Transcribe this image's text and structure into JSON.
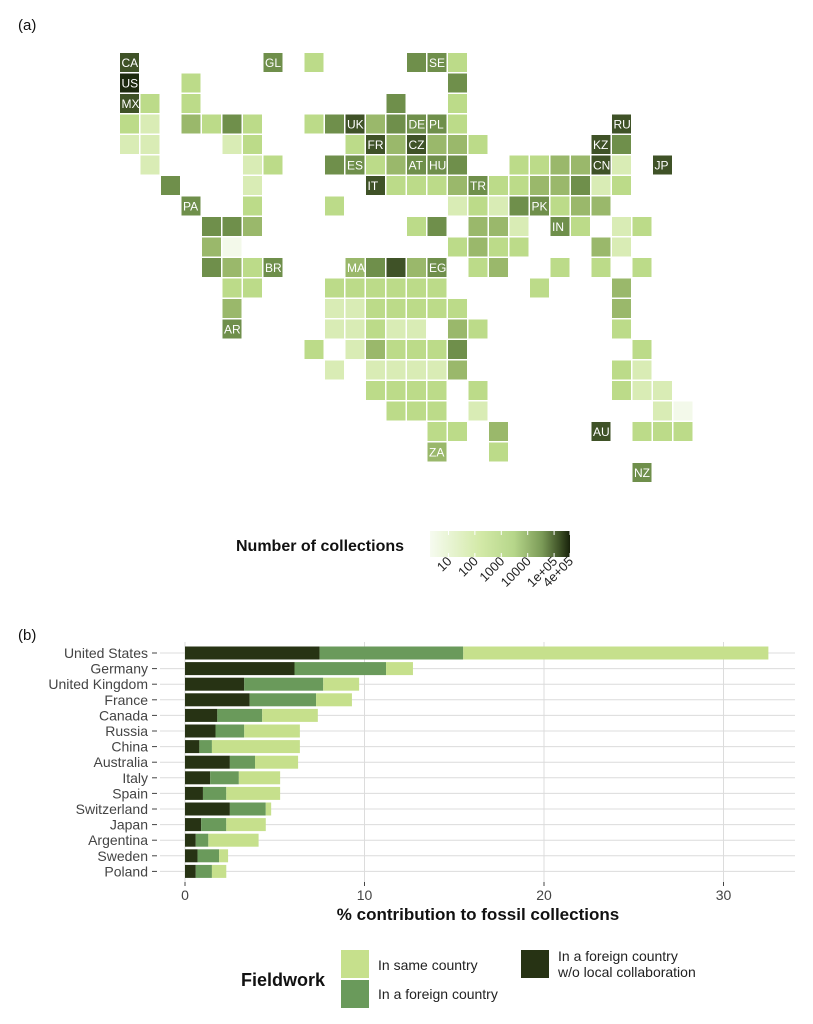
{
  "panel_a_label": "(a)",
  "panel_b_label": "(b)",
  "colors": {
    "same_country": "#c6e08c",
    "foreign_country": "#6a9a5b",
    "foreign_no_collab": "#273314",
    "grid": "#dcdcdc",
    "map_scale": [
      "#f3f9ea",
      "#d9ecb5",
      "#bcdb89",
      "#9ab86b",
      "#6f8f4b",
      "#3f5227",
      "#1d2a0f"
    ]
  },
  "map": {
    "legend_title": "Number of collections",
    "legend_ticks": [
      "10",
      "100",
      "1000",
      "10000",
      "1e+05",
      "4e+05"
    ],
    "tile_labels": [
      "CA",
      "US",
      "MX",
      "GL",
      "SE",
      "UK",
      "DE",
      "PL",
      "RU",
      "FR",
      "CZ",
      "KZ",
      "ES",
      "AT",
      "HU",
      "CN",
      "JP",
      "IT",
      "TR",
      "PA",
      "PK",
      "IN",
      "BR",
      "MA",
      "EG",
      "AR",
      "AU",
      "ZA",
      "NZ"
    ]
  },
  "chart_data": [
    {
      "type": "heatmap",
      "title": "",
      "scale": "log",
      "legend_title": "Number of collections",
      "legend_ticks": [
        10,
        100,
        1000,
        10000,
        100000,
        400000
      ],
      "labeled_cells": [
        "CA",
        "US",
        "MX",
        "GL",
        "SE",
        "UK",
        "DE",
        "PL",
        "RU",
        "FR",
        "CZ",
        "KZ",
        "ES",
        "AT",
        "HU",
        "CN",
        "JP",
        "IT",
        "TR",
        "PA",
        "PK",
        "IN",
        "BR",
        "MA",
        "EG",
        "AR",
        "AU",
        "ZA",
        "NZ"
      ]
    },
    {
      "type": "bar",
      "orientation": "horizontal",
      "stacked": true,
      "categories": [
        "United States",
        "Germany",
        "United Kingdom",
        "France",
        "Canada",
        "Russia",
        "China",
        "Australia",
        "Italy",
        "Spain",
        "Switzerland",
        "Japan",
        "Argentina",
        "Sweden",
        "Poland"
      ],
      "series": [
        {
          "name": "In a foreign country w/o local collaboration",
          "values": [
            7.5,
            6.1,
            3.3,
            3.6,
            1.8,
            1.7,
            0.8,
            2.5,
            1.4,
            1.0,
            2.5,
            0.9,
            0.6,
            0.7,
            0.6
          ]
        },
        {
          "name": "In a foreign country",
          "values": [
            8.0,
            5.1,
            4.4,
            3.7,
            2.5,
            1.6,
            0.7,
            1.4,
            1.6,
            1.3,
            2.0,
            1.4,
            0.7,
            1.2,
            0.9
          ]
        },
        {
          "name": "In same country",
          "values": [
            17.0,
            1.5,
            2.0,
            2.0,
            3.1,
            3.1,
            4.9,
            2.4,
            2.3,
            3.0,
            0.3,
            2.2,
            2.8,
            0.5,
            0.8
          ]
        }
      ],
      "xlabel": "% contribution to fossil collections",
      "ylabel": "",
      "xlim": [
        0,
        34
      ],
      "xticks": [
        0,
        10,
        20,
        30
      ],
      "legend_title": "Fieldwork",
      "legend_position": "bottom"
    }
  ],
  "legend_b": {
    "title": "Fieldwork",
    "same": "In same country",
    "foreign": "In a foreign country",
    "foreign_no_collab_line1": "In a foreign country",
    "foreign_no_collab_line2": "w/o local collaboration"
  }
}
